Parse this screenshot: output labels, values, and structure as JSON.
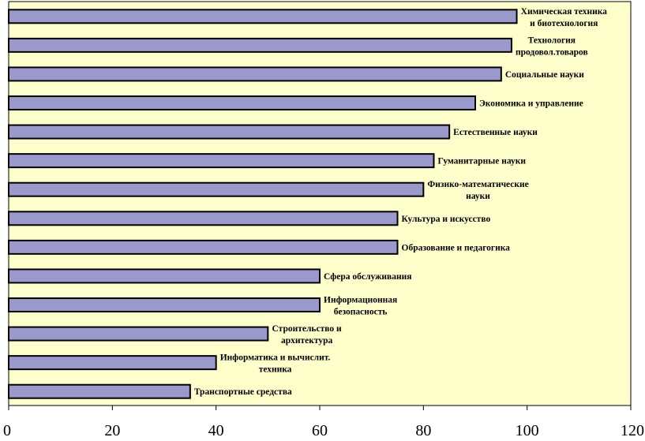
{
  "chart_data": {
    "type": "bar",
    "orientation": "horizontal",
    "title": "",
    "xlabel": "",
    "ylabel": "",
    "xlim": [
      0,
      120
    ],
    "x_ticks": [
      0,
      20,
      40,
      60,
      80,
      100,
      120
    ],
    "grid": false,
    "legend": "none",
    "colors": {
      "bar_fill": "#9999cc",
      "bar_stroke": "#000000",
      "plot_background": "#ffffcc"
    },
    "categories": [
      "Химическая техника и биотехнология",
      "Технология продовол.товаров",
      "Социальные науки",
      "Экономика и управление",
      "Естественные науки",
      "Гуманитарные науки",
      "Физико-математические науки",
      "Культура и искусство",
      "Образование и педагогика",
      "Сфера обслуживания",
      "Информационная безопасность",
      "Строительство и архитектура",
      "Информатика и вычислит. техника",
      "Транспортные средства"
    ],
    "label_lines": [
      [
        "Химическая техника",
        "и биотехнология"
      ],
      [
        "Технология",
        "продовол.товаров"
      ],
      [
        "Социальные науки"
      ],
      [
        "Экономика и управление"
      ],
      [
        "Естественные науки"
      ],
      [
        "Гуманитарные науки"
      ],
      [
        "Физико-математические",
        "науки"
      ],
      [
        "Культура и искусство"
      ],
      [
        "Образование и педагогика"
      ],
      [
        "Сфера обслуживания"
      ],
      [
        "Информационная",
        "безопасность"
      ],
      [
        "Строительство и",
        "архитектура"
      ],
      [
        "Информатика и вычислит.",
        "техника"
      ],
      [
        "Транспортные средства"
      ]
    ],
    "values": [
      98,
      97,
      95,
      90,
      85,
      82,
      80,
      75,
      75,
      60,
      60,
      50,
      40,
      35
    ]
  }
}
